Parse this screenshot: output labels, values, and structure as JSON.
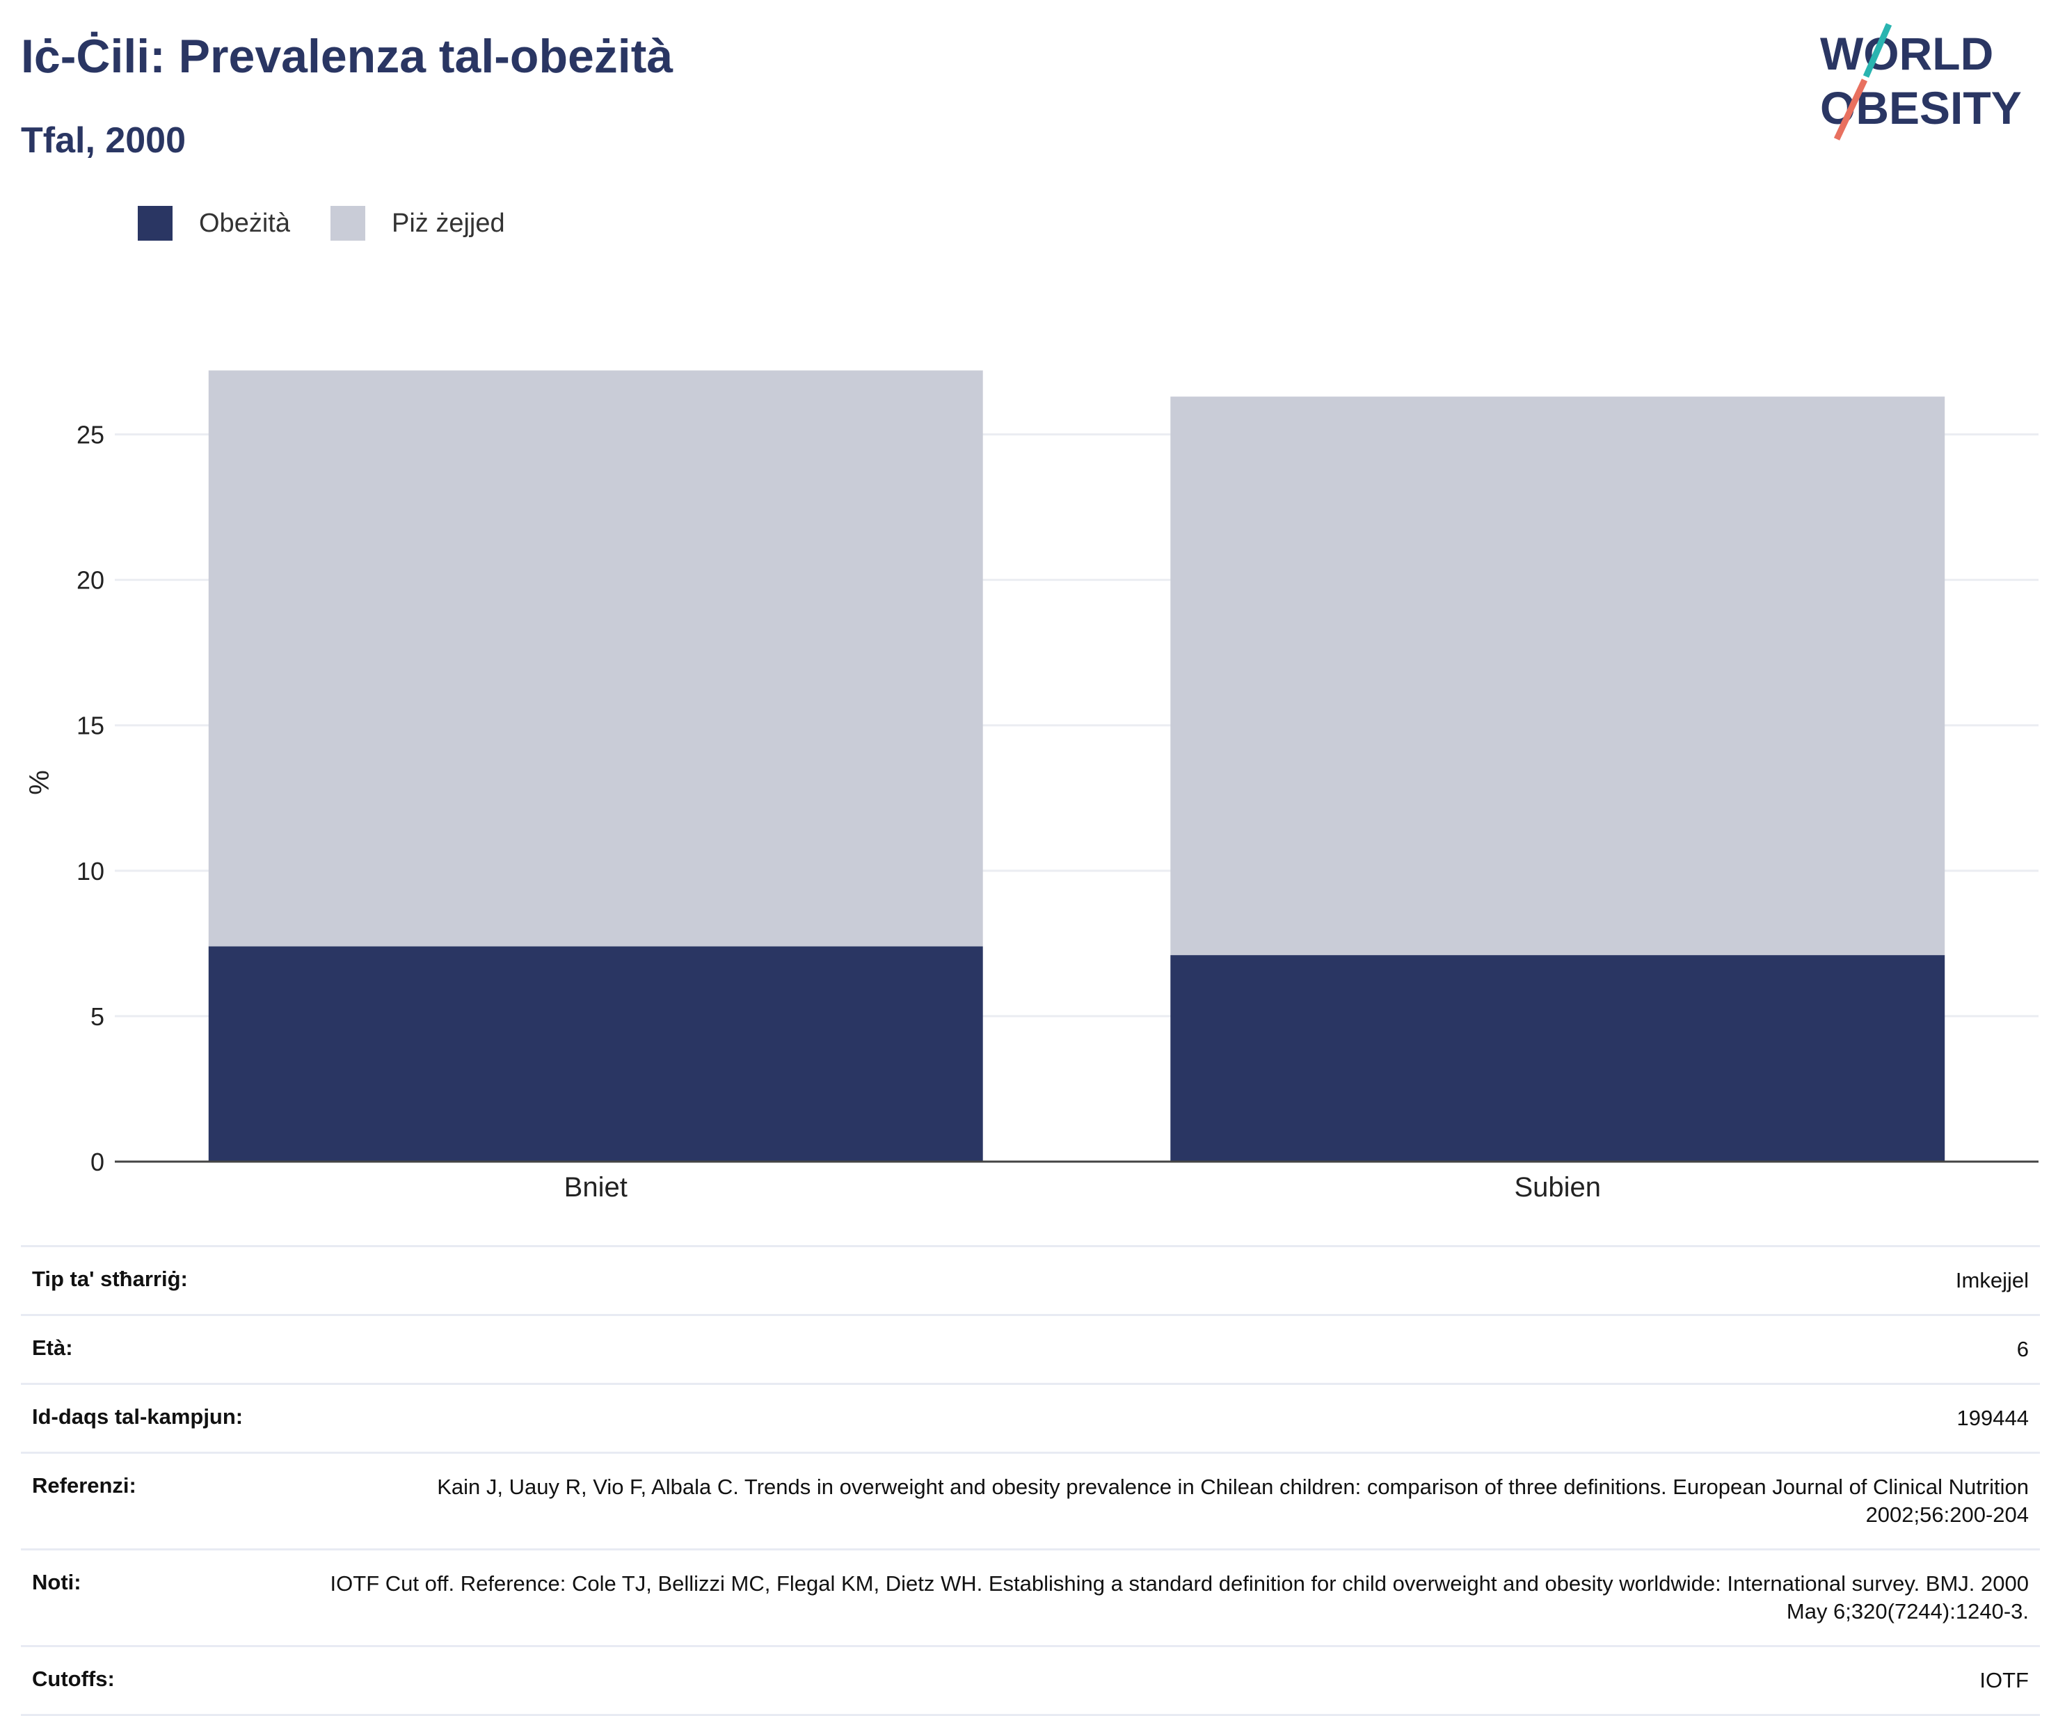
{
  "header": {
    "title": "Iċ-Ċili: Prevalenza tal-obeżità",
    "subtitle": "Tfal, 2000"
  },
  "logo": {
    "line1": "WORLD",
    "line2": "OBESITY"
  },
  "colors": {
    "obesity": "#2a3663",
    "overweight": "#c9ccd7",
    "text": "#2a3663",
    "logo_teal": "#2ab4b0",
    "logo_coral": "#e8705f"
  },
  "chart_data": {
    "type": "bar",
    "stacked": true,
    "categories": [
      "Bniet",
      "Subien"
    ],
    "series": [
      {
        "name": "Obeżità",
        "values": [
          7.4,
          7.1
        ]
      },
      {
        "name": "Piż żejjed",
        "values": [
          19.8,
          19.2
        ]
      }
    ],
    "ylabel": "%",
    "ylim": [
      0,
      27.5
    ],
    "yticks": [
      0,
      5,
      10,
      15,
      20,
      25
    ],
    "grid": true,
    "legend_position": "top-left"
  },
  "meta": [
    {
      "key": "Tip ta' stħarriġ:",
      "value": "Imkejjel"
    },
    {
      "key": "Età:",
      "value": "6"
    },
    {
      "key": "Id-daqs tal-kampjun:",
      "value": "199444"
    },
    {
      "key": "Referenzi:",
      "value": "Kain J, Uauy R, Vio F, Albala C. Trends in overweight and obesity prevalence in Chilean children: comparison of three definitions. European Journal of Clinical Nutrition 2002;56:200-204"
    },
    {
      "key": "Noti:",
      "value": "IOTF Cut off. Reference: Cole TJ, Bellizzi MC, Flegal KM, Dietz WH. Establishing a standard definition for child overweight and obesity worldwide: International survey. BMJ. 2000 May 6;320(7244):1240-3."
    },
    {
      "key": "Cutoffs:",
      "value": "IOTF"
    }
  ]
}
